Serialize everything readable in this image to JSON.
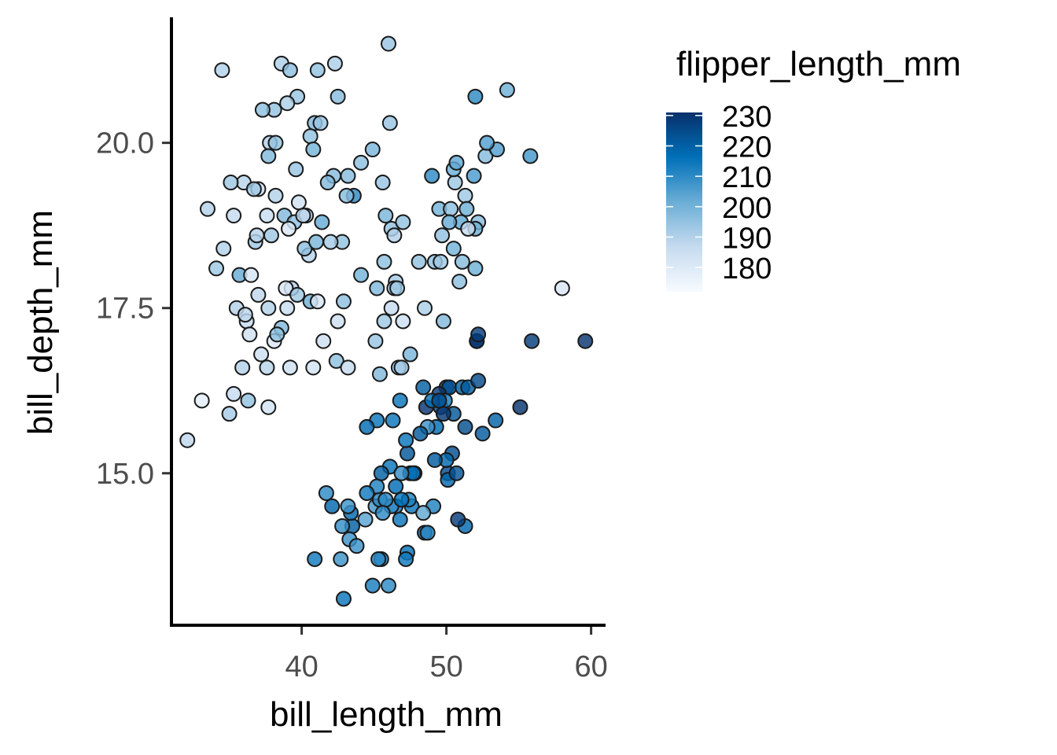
{
  "chart_data": {
    "type": "scatter",
    "xlabel": "bill_length_mm",
    "ylabel": "bill_depth_mm",
    "xlim": [
      31,
      61
    ],
    "ylim": [
      12.7,
      21.9
    ],
    "xticks": [
      40,
      50,
      60
    ],
    "yticks": [
      15.0,
      17.5,
      20.0
    ],
    "xtick_labels": [
      "40",
      "50",
      "60"
    ],
    "ytick_labels": [
      "15.0",
      "17.5",
      "20.0"
    ],
    "grid": false,
    "legend": {
      "title": "flipper_length_mm",
      "placement": "right",
      "type": "colorbar",
      "labels": [
        "230",
        "220",
        "210",
        "200",
        "190",
        "180"
      ],
      "values": [
        230,
        220,
        210,
        200,
        190,
        180
      ],
      "range": [
        172,
        231
      ],
      "colors": [
        "#f7fbff",
        "#c6dbef",
        "#6baed6",
        "#0070b8",
        "#08306b"
      ]
    },
    "points": [
      [
        34.5,
        21.1,
        190
      ],
      [
        38.6,
        21.2,
        191
      ],
      [
        39.2,
        21.1,
        196
      ],
      [
        41.1,
        21.1,
        195
      ],
      [
        42.3,
        21.2,
        191
      ],
      [
        46.0,
        21.5,
        194
      ],
      [
        38.1,
        20.5,
        195
      ],
      [
        39.7,
        20.7,
        194
      ],
      [
        39.0,
        20.6,
        191
      ],
      [
        42.5,
        20.7,
        197
      ],
      [
        40.9,
        20.3,
        198
      ],
      [
        46.1,
        20.3,
        194
      ],
      [
        37.8,
        20.0,
        190
      ],
      [
        38.2,
        20.0,
        195
      ],
      [
        40.6,
        20.1,
        195
      ],
      [
        41.3,
        20.3,
        194
      ],
      [
        37.7,
        19.8,
        198
      ],
      [
        39.6,
        19.6,
        194
      ],
      [
        40.8,
        19.9,
        200
      ],
      [
        37.3,
        20.5,
        196
      ],
      [
        36.0,
        19.4,
        189
      ],
      [
        37.0,
        19.3,
        186
      ],
      [
        38.2,
        19.2,
        190
      ],
      [
        35.3,
        18.9,
        187
      ],
      [
        36.7,
        19.3,
        193
      ],
      [
        39.8,
        19.1,
        184
      ],
      [
        41.4,
        18.8,
        202
      ],
      [
        42.2,
        19.5,
        197
      ],
      [
        43.2,
        19.5,
        197
      ],
      [
        44.1,
        19.7,
        196
      ],
      [
        37.6,
        18.9,
        186
      ],
      [
        38.8,
        18.9,
        198
      ],
      [
        40.3,
        18.9,
        191
      ],
      [
        41.8,
        19.4,
        198
      ],
      [
        45.6,
        19.4,
        194
      ],
      [
        33.5,
        19.0,
        190
      ],
      [
        34.6,
        18.4,
        190
      ],
      [
        36.8,
        18.5,
        193
      ],
      [
        39.5,
        18.8,
        195
      ],
      [
        40.5,
        18.3,
        189
      ],
      [
        43.6,
        19.2,
        210
      ],
      [
        42.8,
        18.5,
        195
      ],
      [
        35.7,
        18.0,
        202
      ],
      [
        36.9,
        18.6,
        189
      ],
      [
        37.9,
        18.6,
        193
      ],
      [
        39.1,
        18.7,
        181
      ],
      [
        40.2,
        18.4,
        196
      ],
      [
        41.0,
        18.5,
        199
      ],
      [
        42.0,
        18.5,
        192
      ],
      [
        35.1,
        19.4,
        193
      ],
      [
        36.5,
        18.0,
        182
      ],
      [
        37.0,
        17.7,
        188
      ],
      [
        38.6,
        17.2,
        198
      ],
      [
        39.3,
        17.8,
        190
      ],
      [
        40.6,
        17.6,
        201
      ],
      [
        42.5,
        17.3,
        185
      ],
      [
        44.1,
        18.0,
        200
      ],
      [
        46.5,
        17.9,
        192
      ],
      [
        45.7,
        17.3,
        193
      ],
      [
        45.1,
        17.0,
        194
      ],
      [
        34.1,
        18.1,
        193
      ],
      [
        35.5,
        17.5,
        190
      ],
      [
        36.2,
        17.3,
        187
      ],
      [
        37.7,
        17.5,
        190
      ],
      [
        38.9,
        17.8,
        181
      ],
      [
        39.0,
        17.5,
        186
      ],
      [
        40.1,
        18.9,
        188
      ],
      [
        41.1,
        17.6,
        182
      ],
      [
        43.1,
        19.2,
        197
      ],
      [
        42.9,
        17.6,
        196
      ],
      [
        36.4,
        17.1,
        184
      ],
      [
        35.9,
        16.6,
        190
      ],
      [
        37.2,
        16.8,
        185
      ],
      [
        38.1,
        17.0,
        181
      ],
      [
        39.7,
        17.7,
        193
      ],
      [
        40.8,
        16.6,
        183
      ],
      [
        41.5,
        17.0,
        185
      ],
      [
        42.4,
        16.7,
        196
      ],
      [
        35.3,
        16.2,
        187
      ],
      [
        36.1,
        17.4,
        188
      ],
      [
        37.6,
        16.6,
        189
      ],
      [
        38.3,
        17.1,
        196
      ],
      [
        39.2,
        16.6,
        185
      ],
      [
        36.3,
        16.1,
        195
      ],
      [
        32.1,
        15.5,
        188
      ],
      [
        33.1,
        16.1,
        178
      ],
      [
        35.0,
        15.9,
        192
      ],
      [
        37.7,
        16.0,
        183
      ],
      [
        43.2,
        16.6,
        187
      ],
      [
        45.4,
        16.5,
        198
      ],
      [
        46.7,
        16.6,
        195
      ],
      [
        46.9,
        16.6,
        192
      ],
      [
        47.5,
        16.8,
        199
      ],
      [
        48.5,
        17.5,
        191
      ],
      [
        46.4,
        17.8,
        191
      ],
      [
        47.0,
        17.3,
        185
      ],
      [
        44.9,
        19.9,
        199
      ],
      [
        45.7,
        18.2,
        196
      ],
      [
        46.2,
        17.5,
        187
      ],
      [
        46.6,
        17.8,
        193
      ],
      [
        46.2,
        18.7,
        195
      ],
      [
        45.2,
        17.8,
        198
      ],
      [
        45.8,
        18.9,
        199
      ],
      [
        46.4,
        18.6,
        190
      ],
      [
        47.0,
        18.8,
        195
      ],
      [
        50.9,
        17.9,
        196
      ],
      [
        52.0,
        18.1,
        201
      ],
      [
        49.8,
        17.3,
        198
      ],
      [
        50.6,
        19.4,
        193
      ],
      [
        51.3,
        19.2,
        193
      ],
      [
        51.9,
        19.5,
        206
      ],
      [
        50.5,
        19.6,
        201
      ],
      [
        52.7,
        19.8,
        197
      ],
      [
        53.5,
        19.9,
        205
      ],
      [
        55.8,
        19.8,
        207
      ],
      [
        49.5,
        19.0,
        200
      ],
      [
        50.3,
        19.0,
        196
      ],
      [
        51.4,
        19.0,
        201
      ],
      [
        52.2,
        18.8,
        197
      ],
      [
        51.0,
        18.8,
        203
      ],
      [
        50.5,
        18.4,
        200
      ],
      [
        49.7,
        18.6,
        195
      ],
      [
        49.2,
        18.2,
        195
      ],
      [
        52.0,
        18.7,
        201
      ],
      [
        50.2,
        18.8,
        202
      ],
      [
        58.0,
        17.8,
        181
      ],
      [
        48.1,
        18.2,
        195
      ],
      [
        49.0,
        19.5,
        210
      ],
      [
        51.5,
        18.7,
        187
      ],
      [
        52.8,
        20.0,
        205
      ],
      [
        54.2,
        20.8,
        201
      ],
      [
        52.0,
        20.7,
        210
      ],
      [
        49.6,
        18.2,
        193
      ],
      [
        51.1,
        18.2,
        197
      ],
      [
        50.7,
        19.7,
        203
      ],
      [
        55.9,
        17.0,
        228
      ],
      [
        59.6,
        17.0,
        230
      ],
      [
        52.1,
        17.0,
        230
      ],
      [
        50.0,
        16.3,
        230
      ],
      [
        49.3,
        15.7,
        217
      ],
      [
        50.2,
        16.3,
        223
      ],
      [
        49.6,
        16.0,
        225
      ],
      [
        50.5,
        15.9,
        222
      ],
      [
        51.3,
        15.7,
        224
      ],
      [
        48.4,
        16.3,
        220
      ],
      [
        47.8,
        15.0,
        215
      ],
      [
        50.1,
        15.0,
        225
      ],
      [
        45.2,
        15.8,
        215
      ],
      [
        46.8,
        16.1,
        215
      ],
      [
        48.7,
        15.7,
        208
      ],
      [
        51.1,
        16.3,
        220
      ],
      [
        52.1,
        17.0,
        230
      ],
      [
        52.2,
        17.1,
        228
      ],
      [
        55.1,
        16.0,
        230
      ],
      [
        53.4,
        15.8,
        219
      ],
      [
        52.5,
        15.6,
        221
      ],
      [
        49.5,
        16.2,
        229
      ],
      [
        49.9,
        16.1,
        213
      ],
      [
        48.6,
        16.0,
        230
      ],
      [
        47.3,
        15.3,
        222
      ],
      [
        46.1,
        15.1,
        215
      ],
      [
        47.5,
        15.0,
        218
      ],
      [
        45.1,
        14.5,
        207
      ],
      [
        44.9,
        13.3,
        213
      ],
      [
        43.5,
        14.2,
        220
      ],
      [
        42.7,
        13.7,
        208
      ],
      [
        42.8,
        14.2,
        209
      ],
      [
        41.7,
        14.7,
        210
      ],
      [
        46.5,
        14.5,
        213
      ],
      [
        45.5,
        13.7,
        214
      ],
      [
        46.2,
        14.5,
        209
      ],
      [
        45.4,
        14.6,
        211
      ],
      [
        46.3,
        15.8,
        215
      ],
      [
        47.2,
        15.5,
        215
      ],
      [
        47.6,
        14.5,
        215
      ],
      [
        48.5,
        14.1,
        220
      ],
      [
        49.1,
        14.5,
        212
      ],
      [
        50.4,
        15.3,
        224
      ],
      [
        51.3,
        14.2,
        218
      ],
      [
        50.8,
        14.3,
        228
      ],
      [
        49.8,
        15.9,
        229
      ],
      [
        49.0,
        16.1,
        216
      ],
      [
        50.0,
        15.2,
        218
      ],
      [
        48.7,
        14.1,
        210
      ],
      [
        46.8,
        14.3,
        215
      ],
      [
        45.3,
        13.7,
        210
      ],
      [
        43.3,
        14.0,
        208
      ],
      [
        42.1,
        14.5,
        218
      ],
      [
        40.9,
        13.7,
        214
      ],
      [
        43.8,
        13.9,
        208
      ],
      [
        44.4,
        14.3,
        204
      ],
      [
        45.8,
        14.6,
        210
      ],
      [
        46.0,
        13.3,
        210
      ],
      [
        47.3,
        13.8,
        216
      ],
      [
        49.2,
        15.2,
        221
      ],
      [
        50.1,
        14.9,
        218
      ],
      [
        48.4,
        14.4,
        203
      ],
      [
        47.4,
        14.6,
        212
      ],
      [
        45.2,
        14.8,
        212
      ],
      [
        45.5,
        15.0,
        220
      ],
      [
        47.7,
        15.0,
        216
      ],
      [
        48.2,
        15.6,
        221
      ],
      [
        46.5,
        14.8,
        217
      ],
      [
        44.5,
        15.7,
        217
      ],
      [
        43.4,
        14.4,
        218
      ],
      [
        43.2,
        14.5,
        208
      ],
      [
        42.9,
        13.1,
        215
      ],
      [
        44.5,
        14.7,
        214
      ],
      [
        46.9,
        14.6,
        216
      ],
      [
        46.9,
        15.0,
        209
      ],
      [
        47.2,
        13.7,
        214
      ],
      [
        45.6,
        14.4,
        210
      ],
      [
        49.5,
        16.1,
        224
      ],
      [
        50.7,
        15.0,
        223
      ],
      [
        51.5,
        16.3,
        221
      ],
      [
        52.2,
        16.4,
        225
      ]
    ]
  }
}
